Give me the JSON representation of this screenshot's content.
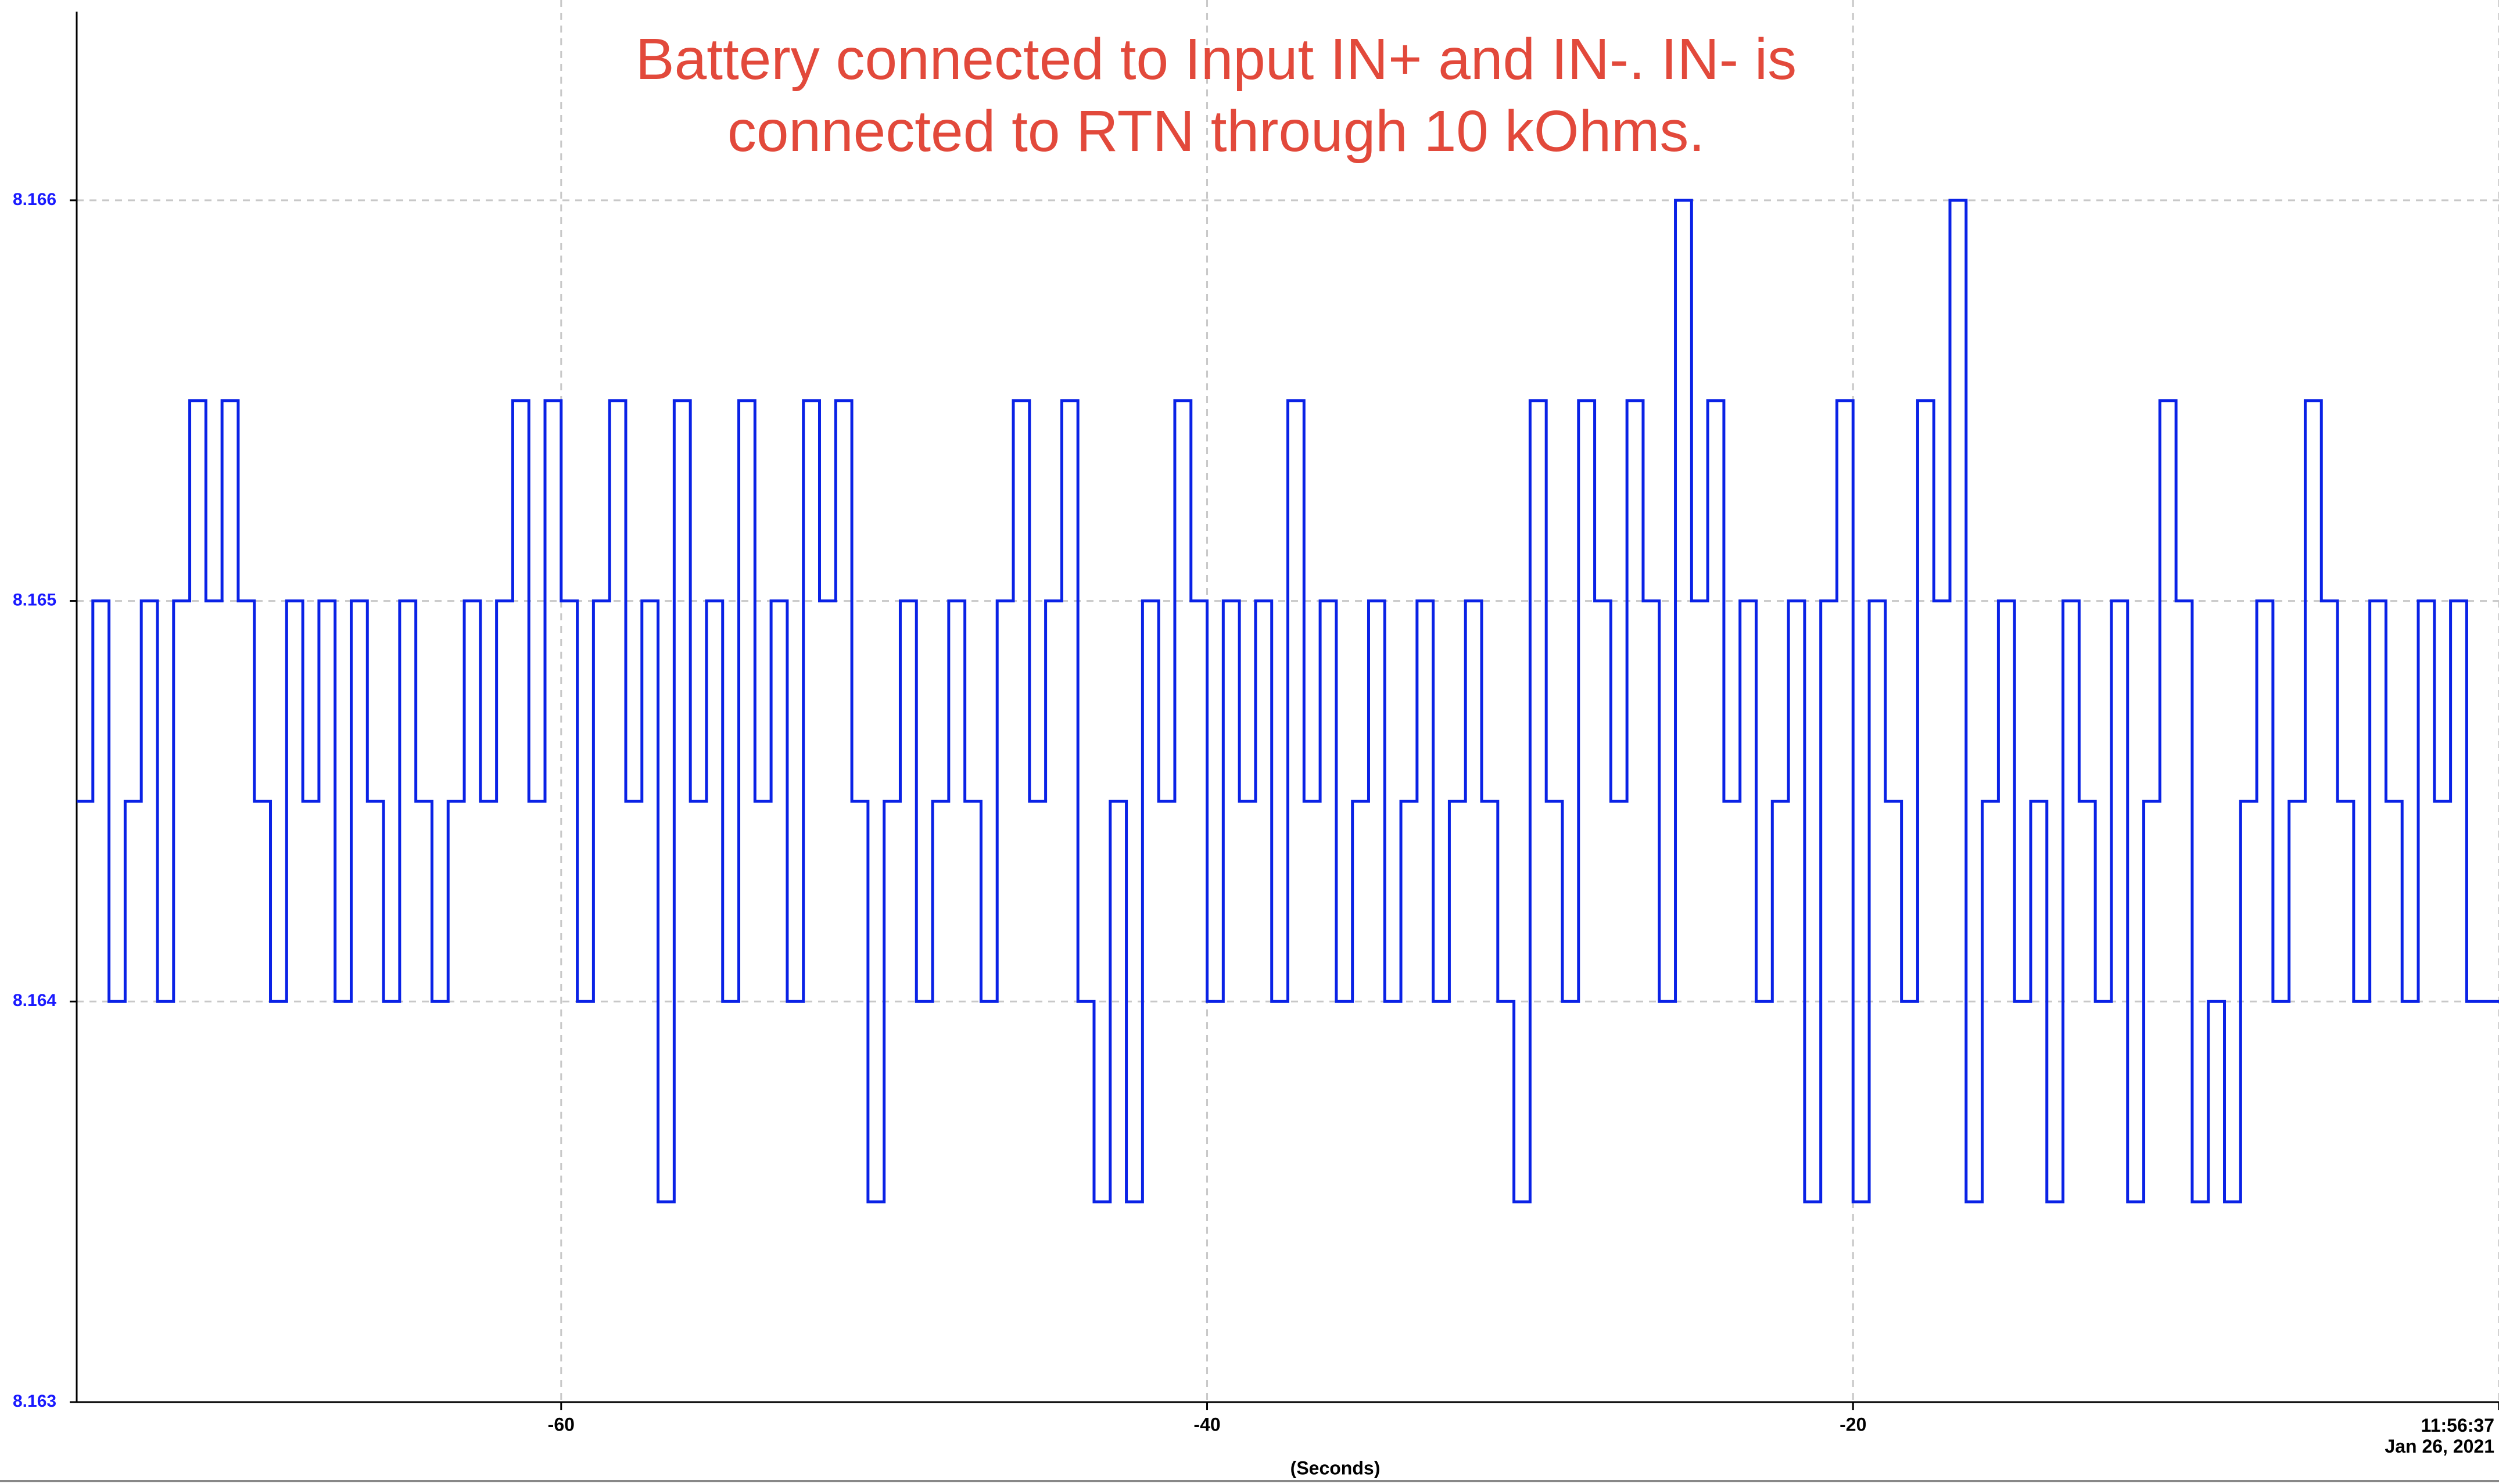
{
  "chart_data": {
    "type": "line",
    "line_style": "step",
    "annotation": "Battery connected to Input IN+ and IN-. IN- is\nconnected to RTN through 10 kOhms.",
    "x_label": "(Seconds)",
    "color": "#0a22e6",
    "grid": true,
    "xlim": [
      -75,
      0
    ],
    "xticks": [
      -60,
      -40,
      -20,
      {
        "value": 0,
        "label": "11:56:37\nJan 26, 2021"
      }
    ],
    "ylim": [
      8.163,
      8.1665
    ],
    "yticks": [
      8.163,
      8.164,
      8.165,
      8.166
    ],
    "x": [
      -75,
      -74.5,
      -74,
      -73.5,
      -73,
      -72.5,
      -72,
      -71.5,
      -71,
      -70.5,
      -70,
      -69.5,
      -69,
      -68.5,
      -68,
      -67.5,
      -67,
      -66.5,
      -66,
      -65.5,
      -65,
      -64.5,
      -64,
      -63.5,
      -63,
      -62.5,
      -62,
      -61.5,
      -61,
      -60.5,
      -60,
      -59.5,
      -59,
      -58.5,
      -58,
      -57.5,
      -57,
      -56.5,
      -56,
      -55.5,
      -55,
      -54.5,
      -54,
      -53.5,
      -53,
      -52.5,
      -52,
      -51.5,
      -51,
      -50.5,
      -50,
      -49.5,
      -49,
      -48.5,
      -48,
      -47.5,
      -47,
      -46.5,
      -46,
      -45.5,
      -45,
      -44.5,
      -44,
      -43.5,
      -43,
      -42.5,
      -42,
      -41.5,
      -41,
      -40.5,
      -40,
      -39.5,
      -39,
      -38.5,
      -38,
      -37.5,
      -37,
      -36.5,
      -36,
      -35.5,
      -35,
      -34.5,
      -34,
      -33.5,
      -33,
      -32.5,
      -32,
      -31.5,
      -31,
      -30.5,
      -30,
      -29.5,
      -29,
      -28.5,
      -28,
      -27.5,
      -27,
      -26.5,
      -26,
      -25.5,
      -25,
      -24.5,
      -24,
      -23.5,
      -23,
      -22.5,
      -22,
      -21.5,
      -21,
      -20.5,
      -20,
      -19.5,
      -19,
      -18.5,
      -18,
      -17.5,
      -17,
      -16.5,
      -16,
      -15.5,
      -15,
      -14.5,
      -14,
      -13.5,
      -13,
      -12.5,
      -12,
      -11.5,
      -11,
      -10.5,
      -10,
      -9.5,
      -9,
      -8.5,
      -8,
      -7.5,
      -7,
      -6.5,
      -6,
      -5.5,
      -5,
      -4.5,
      -4,
      -3.5,
      -3,
      -2.5,
      -2,
      -1.5,
      -1,
      -0.5,
      0
    ],
    "values": [
      8.1645,
      8.165,
      8.164,
      8.1645,
      8.165,
      8.164,
      8.165,
      8.1655,
      8.165,
      8.1655,
      8.165,
      8.1645,
      8.164,
      8.165,
      8.1645,
      8.165,
      8.164,
      8.165,
      8.1645,
      8.164,
      8.165,
      8.1645,
      8.164,
      8.1645,
      8.165,
      8.1645,
      8.165,
      8.1655,
      8.1645,
      8.1655,
      8.165,
      8.164,
      8.165,
      8.1655,
      8.1645,
      8.165,
      8.1635,
      8.1655,
      8.1645,
      8.165,
      8.164,
      8.1655,
      8.1645,
      8.165,
      8.164,
      8.1655,
      8.165,
      8.1655,
      8.1645,
      8.1635,
      8.1645,
      8.165,
      8.164,
      8.1645,
      8.165,
      8.1645,
      8.164,
      8.165,
      8.1655,
      8.1645,
      8.165,
      8.1655,
      8.164,
      8.1635,
      8.1645,
      8.1635,
      8.165,
      8.1645,
      8.1655,
      8.165,
      8.164,
      8.165,
      8.1645,
      8.165,
      8.164,
      8.1655,
      8.1645,
      8.165,
      8.164,
      8.1645,
      8.165,
      8.164,
      8.1645,
      8.165,
      8.164,
      8.1645,
      8.165,
      8.1645,
      8.164,
      8.1635,
      8.1655,
      8.1645,
      8.164,
      8.1655,
      8.165,
      8.1645,
      8.1655,
      8.165,
      8.164,
      8.166,
      8.165,
      8.1655,
      8.1645,
      8.165,
      8.164,
      8.1645,
      8.165,
      8.1635,
      8.165,
      8.1655,
      8.1635,
      8.165,
      8.1645,
      8.164,
      8.1655,
      8.165,
      8.166,
      8.1635,
      8.1645,
      8.165,
      8.164,
      8.1645,
      8.1635,
      8.165,
      8.1645,
      8.164,
      8.165,
      8.1635,
      8.1645,
      8.1655,
      8.165,
      8.1635,
      8.164,
      8.1635,
      8.1645,
      8.165,
      8.164,
      8.1645,
      8.1655,
      8.165,
      8.1645,
      8.164,
      8.165,
      8.1645,
      8.164,
      8.165,
      8.1645,
      8.165,
      8.164,
      8.164,
      8.164
    ]
  }
}
